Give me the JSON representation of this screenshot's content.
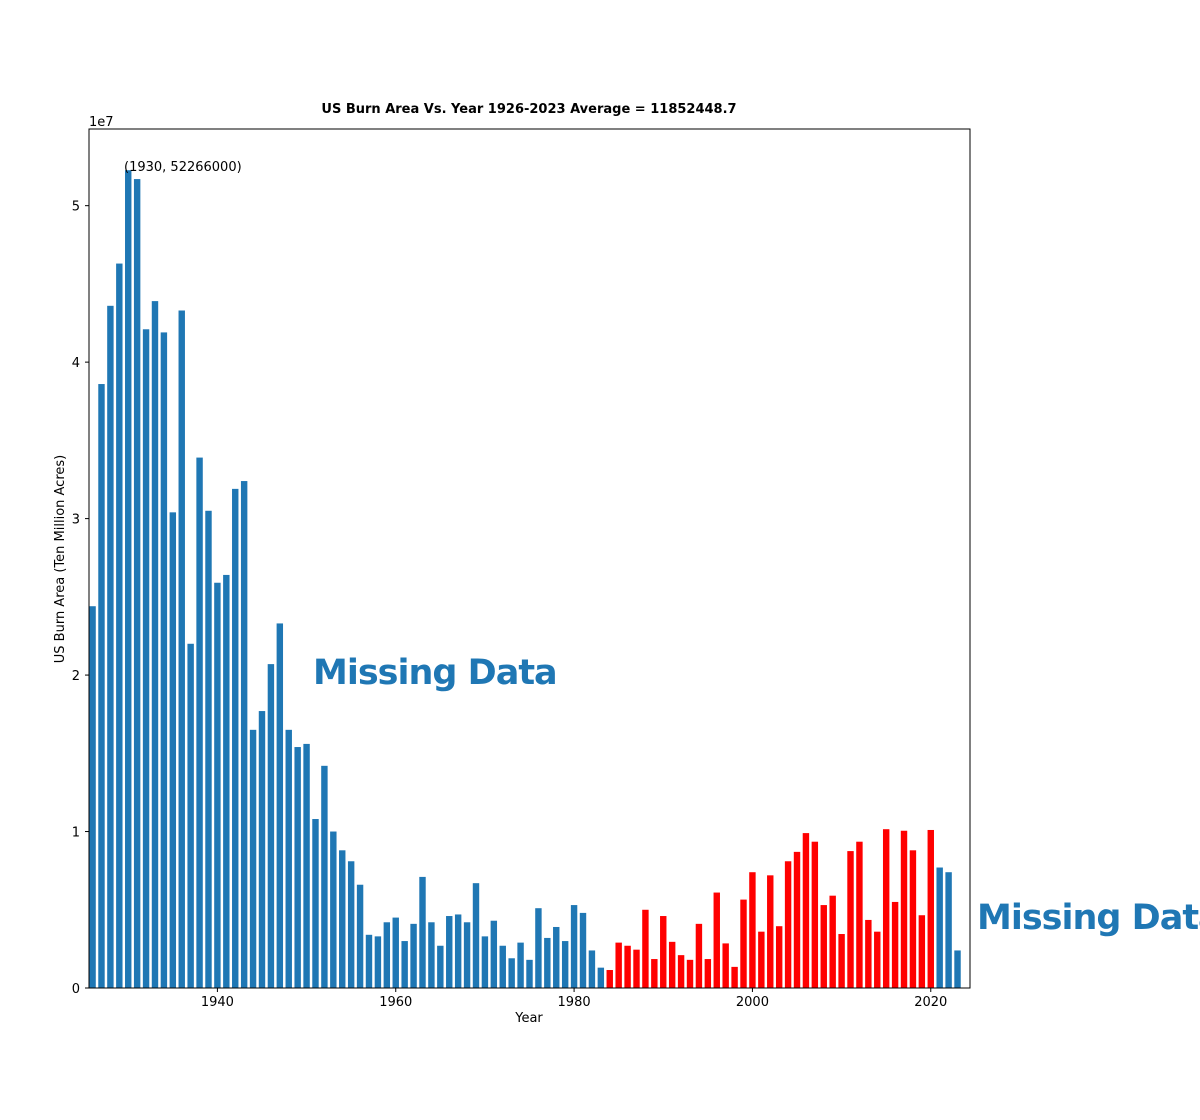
{
  "chart_data": {
    "type": "bar",
    "title": "US Burn Area Vs. Year 1926-2023 Average = 11852448.7",
    "xlabel": "Year",
    "ylabel": "US Burn Area (Ten Million Acres)",
    "offset_label": "1e7",
    "xlim": [
      1925.6,
      2024.4
    ],
    "ylim": [
      0,
      54900000
    ],
    "xticks": [
      1940,
      1960,
      1980,
      2000,
      2020
    ],
    "yticks": [
      0,
      10000000,
      20000000,
      30000000,
      40000000,
      50000000
    ],
    "ytick_labels": [
      "0",
      "1",
      "2",
      "3",
      "4",
      "5"
    ],
    "x": [
      1926,
      1927,
      1928,
      1929,
      1930,
      1931,
      1932,
      1933,
      1934,
      1935,
      1936,
      1937,
      1938,
      1939,
      1940,
      1941,
      1942,
      1943,
      1944,
      1945,
      1946,
      1947,
      1948,
      1949,
      1950,
      1951,
      1952,
      1953,
      1954,
      1955,
      1956,
      1957,
      1958,
      1959,
      1960,
      1961,
      1962,
      1963,
      1964,
      1965,
      1966,
      1967,
      1968,
      1969,
      1970,
      1971,
      1972,
      1973,
      1974,
      1975,
      1976,
      1977,
      1978,
      1979,
      1980,
      1981,
      1982,
      1983,
      1984,
      1985,
      1986,
      1987,
      1988,
      1989,
      1990,
      1991,
      1992,
      1993,
      1994,
      1995,
      1996,
      1997,
      1998,
      1999,
      2000,
      2001,
      2002,
      2003,
      2004,
      2005,
      2006,
      2007,
      2008,
      2009,
      2010,
      2011,
      2012,
      2013,
      2014,
      2015,
      2016,
      2017,
      2018,
      2019,
      2020,
      2021,
      2022,
      2023
    ],
    "series": [
      {
        "color": "#1f77b4",
        "values": [
          24400000,
          38600000,
          43600000,
          46300000,
          52266000,
          51700000,
          42100000,
          43900000,
          41900000,
          30400000,
          43300000,
          22000000,
          33900000,
          30500000,
          25900000,
          26400000,
          31900000,
          32400000,
          16500000,
          17700000,
          20700000,
          23300000,
          16500000,
          15400000,
          15600000,
          10800000,
          14200000,
          10000000,
          8800000,
          8100000,
          6600000,
          3400000,
          3300000,
          4200000,
          4500000,
          3000000,
          4100000,
          7100000,
          4200000,
          2700000,
          4600000,
          4700000,
          4200000,
          6700000,
          3300000,
          4300000,
          2700000,
          1900000,
          2900000,
          1800000,
          5100000,
          3200000,
          3900000,
          3000000,
          5300000,
          4800000,
          2400000,
          1300000,
          null,
          null,
          null,
          null,
          null,
          null,
          null,
          null,
          null,
          null,
          null,
          null,
          null,
          null,
          null,
          null,
          null,
          null,
          null,
          null,
          null,
          null,
          null,
          null,
          null,
          null,
          null,
          null,
          null,
          null,
          null,
          null,
          null,
          null,
          null,
          null,
          null,
          7700000,
          7400000,
          2400000
        ]
      },
      {
        "color": "#ff0000",
        "values": [
          null,
          null,
          null,
          null,
          null,
          null,
          null,
          null,
          null,
          null,
          null,
          null,
          null,
          null,
          null,
          null,
          null,
          null,
          null,
          null,
          null,
          null,
          null,
          null,
          null,
          null,
          null,
          null,
          null,
          null,
          null,
          null,
          null,
          null,
          null,
          null,
          null,
          null,
          null,
          null,
          null,
          null,
          null,
          null,
          null,
          null,
          null,
          null,
          null,
          null,
          null,
          null,
          null,
          null,
          null,
          null,
          null,
          null,
          1150000,
          2900000,
          2700000,
          2450000,
          5000000,
          1850000,
          4600000,
          2950000,
          2100000,
          1800000,
          4100000,
          1850000,
          6100000,
          2850000,
          1350000,
          5650000,
          7400000,
          3600000,
          7200000,
          3950000,
          8100000,
          8700000,
          9900000,
          9350000,
          5300000,
          5900000,
          3450000,
          8750000,
          9350000,
          4350000,
          3600000,
          10150000,
          5500000,
          10050000,
          8800000,
          4650000,
          10100000,
          null,
          null,
          null
        ]
      }
    ],
    "annotations": [
      {
        "text": "(1930, 52266000)",
        "x": 1930,
        "y": 52266000
      },
      {
        "text": "Missing Data",
        "x": 1961,
        "y": 20000000
      }
    ],
    "grid": false,
    "legend": "none"
  },
  "outside_annotations": [
    {
      "text": "Missing Data"
    }
  ]
}
